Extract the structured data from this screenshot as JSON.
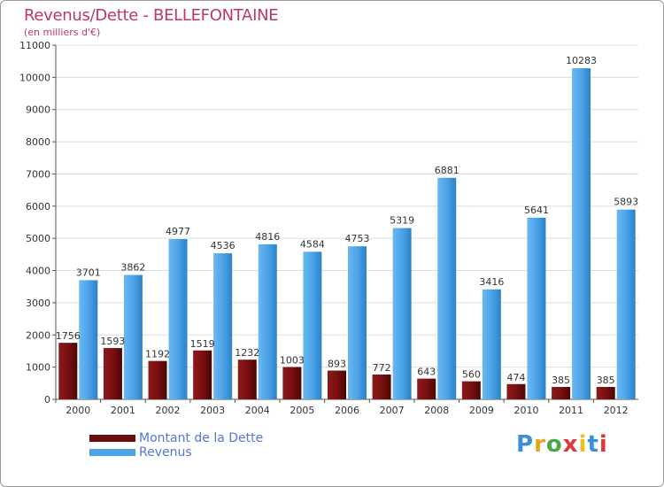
{
  "title": "Revenus/Dette - BELLEFONTAINE",
  "subtitle": "(en milliers d'€)",
  "brand": {
    "text": "Proxiti",
    "colors": [
      "#3a8fd9",
      "#e8a21c",
      "#4aa84a",
      "#d93a3a",
      "#e8c21c",
      "#3a8fd9",
      "#d93a3a"
    ]
  },
  "legend": [
    {
      "label": "Montant de la Dette",
      "color": "#6b0e0e"
    },
    {
      "label": "Revenus",
      "color": "#4ba3e8"
    }
  ],
  "chart_data": {
    "type": "bar",
    "categories": [
      "2000",
      "2001",
      "2002",
      "2003",
      "2004",
      "2005",
      "2006",
      "2007",
      "2008",
      "2009",
      "2010",
      "2011",
      "2012"
    ],
    "series": [
      {
        "name": "Montant de la Dette",
        "color": "#6b0e0e",
        "values": [
          1756,
          1593,
          1192,
          1519,
          1232,
          1003,
          893,
          772,
          643,
          560,
          474,
          385,
          385
        ]
      },
      {
        "name": "Revenus",
        "color": "#4ba3e8",
        "values": [
          3701,
          3862,
          4977,
          4536,
          4816,
          4584,
          4753,
          5319,
          6881,
          3416,
          5641,
          10283,
          5893
        ]
      }
    ],
    "yticks": [
      0,
      1000,
      2000,
      3000,
      4000,
      5000,
      6000,
      7000,
      8000,
      9000,
      10000,
      11000
    ],
    "ylim": [
      0,
      11000
    ],
    "grid": true
  }
}
